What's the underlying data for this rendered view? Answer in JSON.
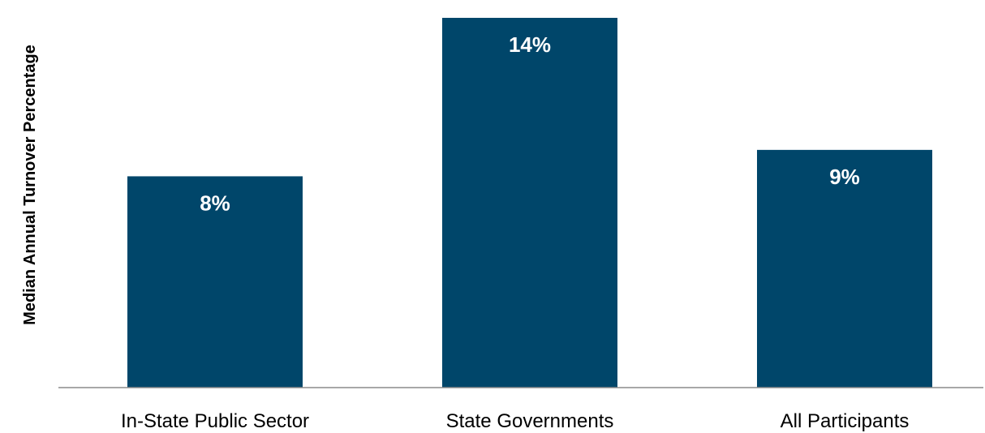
{
  "chart_data": {
    "type": "bar",
    "title": "",
    "xlabel": "",
    "ylabel": "Median Annual Turnover Percentage",
    "categories": [
      "In-State Public Sector",
      "State Governments",
      "All Participants"
    ],
    "values": [
      8,
      14,
      9
    ],
    "data_labels": [
      "8%",
      "14%",
      "9%"
    ],
    "ylim": [
      0,
      14
    ],
    "grid": false,
    "legend": "none",
    "bar_color": "#00466a",
    "axis_color": "#8c8c8c"
  }
}
